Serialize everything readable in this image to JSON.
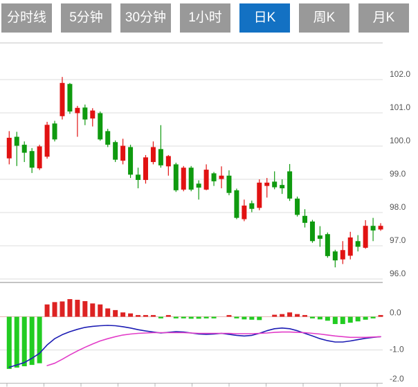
{
  "tabs": {
    "items": [
      {
        "label": "分时线",
        "active": false
      },
      {
        "label": "5分钟",
        "active": false
      },
      {
        "label": "30分钟",
        "active": false
      },
      {
        "label": "1小时",
        "active": false
      },
      {
        "label": "日K",
        "active": true
      },
      {
        "label": "周K",
        "active": false
      },
      {
        "label": "月K",
        "active": false
      }
    ]
  },
  "colors": {
    "tab_bg": "#999999",
    "tab_active_bg": "#1371c3",
    "tab_text": "#ffffff",
    "up": "#e11212",
    "down": "#0f9a0f",
    "hist_up": "#dd2222",
    "hist_down": "#22cc22",
    "dif_line": "#1c1cb4",
    "dea_line": "#e23cc8",
    "grid": "#dcdcdc",
    "pane_border": "#c4c4c4",
    "zero_line": "#e8b4b4",
    "bottom_axis": "#b5b5b5",
    "axis_text": "#555555"
  },
  "chart_data": {
    "type": "candlestick",
    "panes": [
      "price-candlestick",
      "macd-indicator"
    ],
    "color_convention": "red = up (close>=open), green = down (CN style)",
    "grid": true,
    "price_axis": {
      "side": "right",
      "tick_labels": [
        "102.0",
        "101.0",
        "100.0",
        "99.0",
        "98.0",
        "97.0",
        "96.0"
      ],
      "tick_values": [
        102,
        101,
        100,
        99,
        98,
        97,
        96
      ],
      "range": [
        95.9,
        103.1
      ]
    },
    "macd_axis": {
      "side": "right",
      "tick_labels": [
        "0.0",
        "-1.0",
        "-2.0"
      ],
      "tick_values": [
        0,
        -1,
        -2
      ],
      "range": [
        -2.0,
        0.6
      ]
    },
    "candles_ohlc": [
      [
        99.63,
        100.45,
        99.45,
        100.25
      ],
      [
        100.28,
        100.43,
        99.4,
        100.01
      ],
      [
        100.04,
        100.14,
        99.52,
        99.8
      ],
      [
        99.85,
        99.94,
        99.19,
        99.35
      ],
      [
        99.33,
        100.04,
        99.28,
        99.99
      ],
      [
        99.68,
        100.73,
        99.62,
        100.64
      ],
      [
        100.68,
        100.76,
        100.14,
        100.2
      ],
      [
        100.9,
        102.08,
        100.8,
        101.9
      ],
      [
        101.87,
        101.9,
        100.97,
        101.04
      ],
      [
        100.99,
        101.21,
        100.28,
        101.15
      ],
      [
        101.16,
        101.25,
        100.63,
        100.8
      ],
      [
        100.83,
        101.14,
        100.59,
        101.07
      ],
      [
        100.99,
        101.04,
        100.16,
        100.2
      ],
      [
        100.45,
        100.52,
        99.97,
        100.04
      ],
      [
        100.12,
        100.17,
        99.52,
        99.59
      ],
      [
        99.56,
        100.22,
        99.45,
        100.01
      ],
      [
        99.97,
        100.04,
        99.04,
        99.14
      ],
      [
        99.14,
        99.35,
        98.73,
        98.98
      ],
      [
        98.98,
        99.73,
        98.87,
        99.66
      ],
      [
        99.52,
        100.14,
        99.45,
        99.97
      ],
      [
        99.91,
        100.63,
        99.35,
        99.42
      ],
      [
        99.39,
        99.73,
        99.11,
        99.7
      ],
      [
        99.45,
        99.5,
        98.62,
        98.67
      ],
      [
        98.69,
        99.4,
        98.64,
        99.35
      ],
      [
        99.35,
        99.4,
        98.64,
        98.69
      ],
      [
        98.87,
        98.97,
        98.39,
        98.75
      ],
      [
        98.69,
        99.45,
        98.67,
        99.29
      ],
      [
        99.18,
        99.22,
        98.8,
        98.94
      ],
      [
        99.01,
        99.39,
        98.73,
        99.11
      ],
      [
        99.11,
        99.27,
        98.52,
        98.59
      ],
      [
        98.67,
        98.72,
        97.8,
        97.84
      ],
      [
        97.8,
        98.39,
        97.74,
        98.21
      ],
      [
        98.28,
        98.36,
        98.01,
        98.11
      ],
      [
        98.14,
        99.0,
        98.07,
        98.9
      ],
      [
        98.8,
        99.04,
        98.45,
        98.9
      ],
      [
        98.93,
        99.24,
        98.7,
        98.76
      ],
      [
        98.83,
        99.0,
        98.56,
        98.73
      ],
      [
        99.24,
        99.46,
        98.35,
        98.42
      ],
      [
        98.42,
        98.48,
        97.88,
        97.93
      ],
      [
        97.9,
        98.1,
        97.55,
        97.69
      ],
      [
        97.73,
        97.78,
        97.09,
        97.14
      ],
      [
        97.31,
        97.59,
        96.97,
        97.21
      ],
      [
        97.35,
        97.4,
        96.64,
        96.69
      ],
      [
        96.83,
        96.88,
        96.35,
        96.56
      ],
      [
        96.59,
        97.14,
        96.45,
        96.87
      ],
      [
        96.7,
        97.42,
        96.59,
        97.25
      ],
      [
        97.14,
        97.32,
        96.83,
        96.97
      ],
      [
        96.94,
        97.77,
        96.91,
        97.6
      ],
      [
        97.6,
        97.84,
        97.14,
        97.46
      ],
      [
        97.49,
        97.68,
        97.45,
        97.6
      ]
    ],
    "macd": {
      "hist": [
        -1.57,
        -1.53,
        -1.49,
        -1.45,
        -1.4,
        0.37,
        0.44,
        0.46,
        0.53,
        0.51,
        0.47,
        0.4,
        0.37,
        0.25,
        0.2,
        0.13,
        0.1,
        0.05,
        0.04,
        0.02,
        -0.03,
        0.03,
        -0.02,
        -0.05,
        -0.06,
        -0.06,
        -0.05,
        -0.04,
        0.0,
        0.04,
        -0.03,
        -0.08,
        -0.09,
        -0.1,
        0.0,
        0.06,
        0.08,
        0.13,
        0.08,
        0.04,
        -0.04,
        -0.08,
        -0.12,
        -0.22,
        -0.22,
        -0.18,
        -0.14,
        -0.09,
        -0.05,
        0.05
      ],
      "dif": [
        -1.52,
        -1.45,
        -1.38,
        -1.25,
        -1.1,
        -0.85,
        -0.66,
        -0.54,
        -0.45,
        -0.38,
        -0.32,
        -0.29,
        -0.27,
        -0.26,
        -0.27,
        -0.3,
        -0.34,
        -0.39,
        -0.43,
        -0.46,
        -0.49,
        -0.47,
        -0.45,
        -0.46,
        -0.49,
        -0.52,
        -0.53,
        -0.52,
        -0.5,
        -0.53,
        -0.56,
        -0.58,
        -0.56,
        -0.5,
        -0.42,
        -0.36,
        -0.34,
        -0.36,
        -0.42,
        -0.5,
        -0.58,
        -0.66,
        -0.72,
        -0.76,
        -0.76,
        -0.73,
        -0.69,
        -0.65,
        -0.62,
        -0.6
      ],
      "dea": [
        null,
        null,
        null,
        null,
        null,
        -1.47,
        -1.4,
        -1.28,
        -1.15,
        -1.03,
        -0.92,
        -0.82,
        -0.73,
        -0.66,
        -0.6,
        -0.55,
        -0.52,
        -0.5,
        -0.49,
        -0.48,
        -0.48,
        -0.48,
        -0.48,
        -0.48,
        -0.49,
        -0.5,
        -0.5,
        -0.5,
        -0.5,
        -0.5,
        -0.51,
        -0.51,
        -0.51,
        -0.5,
        -0.49,
        -0.47,
        -0.46,
        -0.46,
        -0.47,
        -0.48,
        -0.5,
        -0.52,
        -0.55,
        -0.58,
        -0.6,
        -0.62,
        -0.62,
        -0.62,
        -0.61,
        -0.6
      ]
    }
  }
}
